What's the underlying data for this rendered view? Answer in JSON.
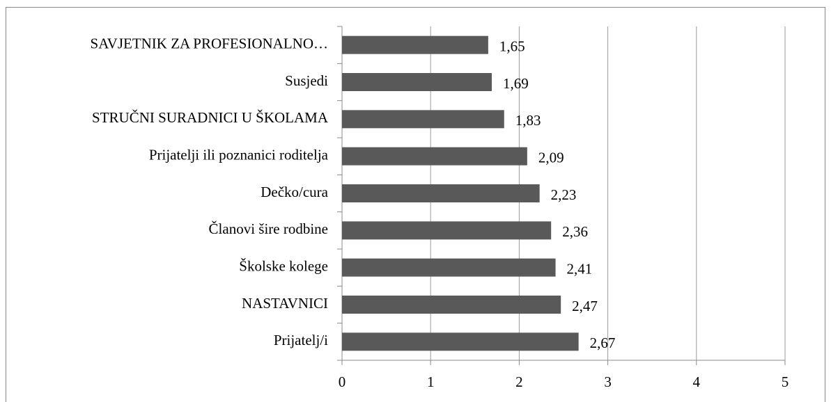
{
  "chart_data": {
    "type": "hbar",
    "categories": [
      "SAVJETNIK ZA PROFESIONALNO…",
      "Susjedi",
      "STRUČNI SURADNICI U ŠKOLAMA",
      "Prijatelji ili poznanici roditelja",
      "Dečko/cura",
      "Članovi šire rodbine",
      "Školske kolege",
      "NASTAVNICI",
      "Prijatelj/i"
    ],
    "values": [
      1.65,
      1.69,
      1.83,
      2.09,
      2.23,
      2.36,
      2.41,
      2.47,
      2.67
    ],
    "value_labels": [
      "1,65",
      "1,69",
      "1,83",
      "2,09",
      "2,23",
      "2,36",
      "2,41",
      "2,47",
      "2,67"
    ],
    "color": "#595959",
    "xlim": [
      0,
      5
    ],
    "xticks": [
      0,
      1,
      2,
      3,
      4,
      5
    ],
    "grid": true
  }
}
